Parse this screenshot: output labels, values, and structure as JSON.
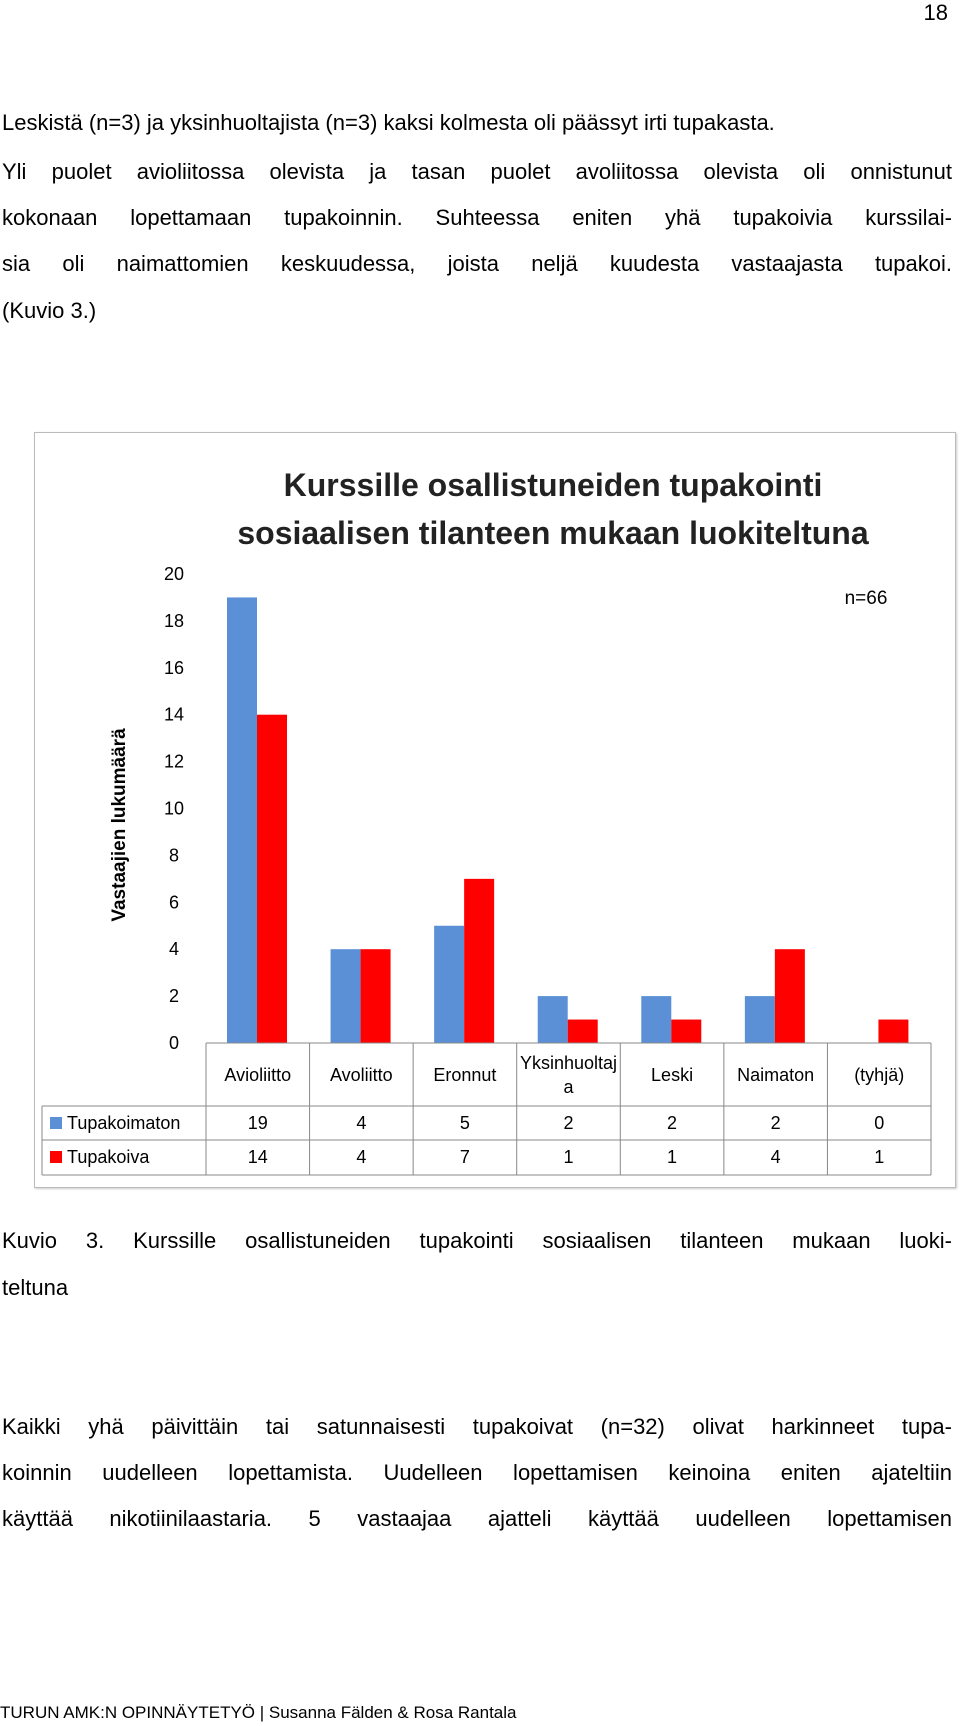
{
  "page_number": "18",
  "paragraphs": [
    [
      "Leskistä (n=3) ja yksinhuoltajista (n=3) kaksi kolmesta oli päässyt irti tupakasta."
    ],
    [
      "Yli puolet avioliitossa olevista ja tasan puolet avoliitossa olevista oli onnistunut",
      "kokonaan lopettamaan tupakoinnin. Suhteessa eniten yhä tupakoivia kurssilai-",
      "sia oli naimattomien keskuudessa, joista neljä kuudesta vastaajasta tupakoi.",
      "(Kuvio 3.)"
    ],
    [
      "Kaikki yhä päivittäin tai satunnaisesti tupakoivat (n=32) olivat harkinneet tupa-",
      "koinnin uudelleen lopettamista. Uudelleen lopettamisen keinoina eniten ajateltiin",
      "käyttää nikotiinilaastaria. 5 vastaajaa ajatteli käyttää uudelleen lopettamisen"
    ]
  ],
  "caption": [
    "Kuvio 3. Kurssille osallistuneiden tupakointi sosiaalisen tilanteen mukaan luoki-",
    "teltuna"
  ],
  "footer": "TURUN AMK:N OPINNÄYTETYÖ | Susanna Fälden & Rosa Rantala",
  "chart_data": {
    "type": "bar",
    "title": [
      "Kurssille osallistuneiden tupakointi",
      "sosiaalisen tilanteen mukaan luokiteltuna"
    ],
    "annotation": "n=66",
    "y_label": "Vastaajien lukumäärä",
    "categories": [
      "Avioliitto",
      "Avoliitto",
      "Eronnut",
      "Yksinhuoltaja",
      "Leski",
      "Naimaton",
      "(tyhjä)"
    ],
    "series": [
      {
        "name": "Tupakoimaton",
        "color": "#5b8fd6",
        "values": [
          19,
          4,
          5,
          2,
          2,
          2,
          0
        ]
      },
      {
        "name": "Tupakoiva",
        "color": "#ff0000",
        "values": [
          14,
          4,
          7,
          1,
          1,
          4,
          1
        ]
      }
    ],
    "ylim": [
      0,
      20
    ],
    "yticks": [
      0,
      2,
      4,
      6,
      8,
      10,
      12,
      14,
      16,
      18,
      20
    ],
    "grid": false,
    "data_table": true
  }
}
